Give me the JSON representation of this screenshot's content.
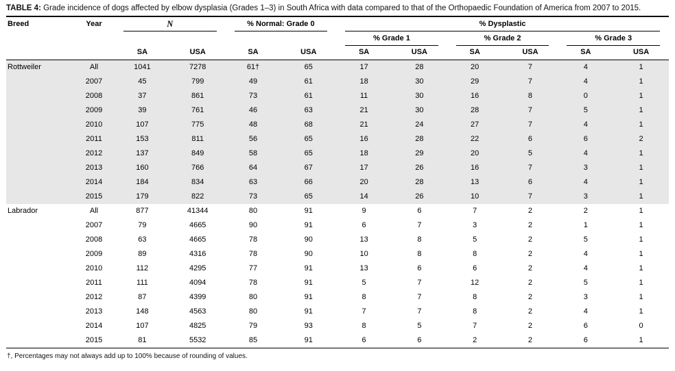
{
  "caption": {
    "label": "TABLE 4:",
    "text": "Grade incidence of dogs affected by elbow dysplasia (Grades 1–3) in South Africa with data compared to that of the Orthopaedic Foundation of America from 2007 to 2015."
  },
  "header": {
    "breed": "Breed",
    "year": "Year",
    "n": "N",
    "normal_grade0": "% Normal: Grade 0",
    "dysplastic": "% Dysplastic",
    "grade1": "% Grade 1",
    "grade2": "% Grade 2",
    "grade3": "% Grade 3",
    "sa": "SA",
    "usa": "USA"
  },
  "groups": [
    {
      "breed": "Rottweiler",
      "shaded": true,
      "rows": [
        {
          "year": "All",
          "values": [
            "1041",
            "7278",
            "61†",
            "65",
            "17",
            "28",
            "20",
            "7",
            "4",
            "1"
          ]
        },
        {
          "year": "2007",
          "values": [
            "45",
            "799",
            "49",
            "61",
            "18",
            "30",
            "29",
            "7",
            "4",
            "1"
          ]
        },
        {
          "year": "2008",
          "values": [
            "37",
            "861",
            "73",
            "61",
            "11",
            "30",
            "16",
            "8",
            "0",
            "1"
          ]
        },
        {
          "year": "2009",
          "values": [
            "39",
            "761",
            "46",
            "63",
            "21",
            "30",
            "28",
            "7",
            "5",
            "1"
          ]
        },
        {
          "year": "2010",
          "values": [
            "107",
            "775",
            "48",
            "68",
            "21",
            "24",
            "27",
            "7",
            "4",
            "1"
          ]
        },
        {
          "year": "2011",
          "values": [
            "153",
            "811",
            "56",
            "65",
            "16",
            "28",
            "22",
            "6",
            "6",
            "2"
          ]
        },
        {
          "year": "2012",
          "values": [
            "137",
            "849",
            "58",
            "65",
            "18",
            "29",
            "20",
            "5",
            "4",
            "1"
          ]
        },
        {
          "year": "2013",
          "values": [
            "160",
            "766",
            "64",
            "67",
            "17",
            "26",
            "16",
            "7",
            "3",
            "1"
          ]
        },
        {
          "year": "2014",
          "values": [
            "184",
            "834",
            "63",
            "66",
            "20",
            "28",
            "13",
            "6",
            "4",
            "1"
          ]
        },
        {
          "year": "2015",
          "values": [
            "179",
            "822",
            "73",
            "65",
            "14",
            "26",
            "10",
            "7",
            "3",
            "1"
          ]
        }
      ]
    },
    {
      "breed": "Labrador",
      "shaded": false,
      "rows": [
        {
          "year": "All",
          "values": [
            "877",
            "41344",
            "80",
            "91",
            "9",
            "6",
            "7",
            "2",
            "2",
            "1"
          ]
        },
        {
          "year": "2007",
          "values": [
            "79",
            "4665",
            "90",
            "91",
            "6",
            "7",
            "3",
            "2",
            "1",
            "1"
          ]
        },
        {
          "year": "2008",
          "values": [
            "63",
            "4665",
            "78",
            "90",
            "13",
            "8",
            "5",
            "2",
            "5",
            "1"
          ]
        },
        {
          "year": "2009",
          "values": [
            "89",
            "4316",
            "78",
            "90",
            "10",
            "8",
            "8",
            "2",
            "4",
            "1"
          ]
        },
        {
          "year": "2010",
          "values": [
            "112",
            "4295",
            "77",
            "91",
            "13",
            "6",
            "6",
            "2",
            "4",
            "1"
          ]
        },
        {
          "year": "2011",
          "values": [
            "111",
            "4094",
            "78",
            "91",
            "5",
            "7",
            "12",
            "2",
            "5",
            "1"
          ]
        },
        {
          "year": "2012",
          "values": [
            "87",
            "4399",
            "80",
            "91",
            "8",
            "7",
            "8",
            "2",
            "3",
            "1"
          ]
        },
        {
          "year": "2013",
          "values": [
            "148",
            "4563",
            "80",
            "91",
            "7",
            "7",
            "8",
            "2",
            "4",
            "1"
          ]
        },
        {
          "year": "2014",
          "values": [
            "107",
            "4825",
            "79",
            "93",
            "8",
            "5",
            "7",
            "2",
            "6",
            "0"
          ]
        },
        {
          "year": "2015",
          "values": [
            "81",
            "5532",
            "85",
            "91",
            "6",
            "6",
            "2",
            "2",
            "6",
            "1"
          ]
        }
      ]
    }
  ],
  "footnote": "†, Percentages may not always add up to 100% because of rounding of values.",
  "colors": {
    "shaded_row": "#e7e7e7",
    "rule": "#000000"
  }
}
